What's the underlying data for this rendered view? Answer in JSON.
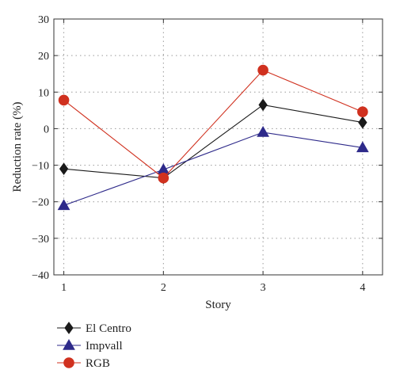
{
  "chart_data": {
    "type": "line",
    "categories": [
      "1",
      "2",
      "3",
      "4"
    ],
    "x": [
      1,
      2,
      3,
      4
    ],
    "xlabel": "Story",
    "ylabel": "Reduction rate (%)",
    "xlim": [
      0.9,
      4.2
    ],
    "ylim": [
      -40,
      30
    ],
    "yticks": [
      -40,
      -30,
      -20,
      -10,
      0,
      10,
      20,
      30
    ],
    "ytick_labels": [
      "−40",
      "−30",
      "−20",
      "−10",
      "0",
      "10",
      "20",
      "30"
    ],
    "grid": true,
    "legend_position": "bottom-left, below plot",
    "series": [
      {
        "name": "El Centro",
        "values": [
          -11,
          -13.5,
          6.5,
          1.7
        ],
        "color": "#1a1a1a",
        "marker": "diamond"
      },
      {
        "name": "Impvall",
        "values": [
          -21,
          -11.2,
          -1,
          -5.2
        ],
        "color": "#2e2a8a",
        "marker": "triangle"
      },
      {
        "name": "RGB",
        "values": [
          7.8,
          -13.5,
          16,
          4.6
        ],
        "color": "#d0311f",
        "marker": "circle"
      }
    ]
  }
}
